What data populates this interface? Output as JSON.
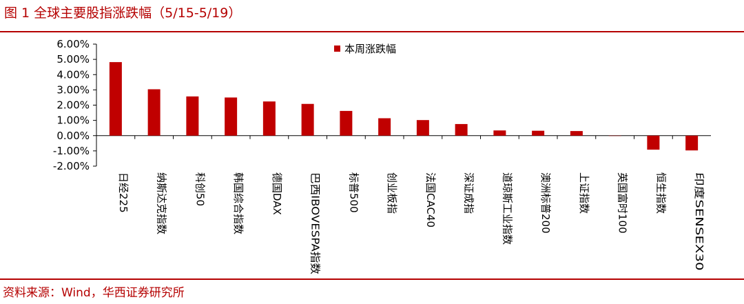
{
  "title": "图 1  全球主要股指涨跌幅（5/15-5/19）",
  "source": "资料来源：Wind，华西证券研究所",
  "colors": {
    "accent": "#b50000",
    "bar": "#c00000"
  },
  "chart_data": {
    "type": "bar",
    "categories": [
      "日经225",
      "纳斯达克指数",
      "科创50",
      "韩国综合指数",
      "德国DAX",
      "巴西IBOVESPA指数",
      "标普500",
      "创业板指",
      "法国CAC40",
      "深证成指",
      "道琼斯工业指数",
      "澳洲标普200",
      "上证指数",
      "英国富时100",
      "恒生指数",
      "印度SENSEX30"
    ],
    "series": [
      {
        "name": "本周涨跌幅",
        "values": [
          4.82,
          3.04,
          2.57,
          2.5,
          2.24,
          2.08,
          1.62,
          1.14,
          1.02,
          0.76,
          0.34,
          0.32,
          0.3,
          -0.02,
          -0.92,
          -0.97
        ]
      }
    ],
    "ylim": [
      -2,
      6
    ],
    "yticks": [
      "6.00%",
      "5.00%",
      "4.00%",
      "3.00%",
      "2.00%",
      "1.00%",
      "0.00%",
      "-1.00%",
      "-2.00%"
    ],
    "legend_position": "top-center",
    "grid": false
  }
}
